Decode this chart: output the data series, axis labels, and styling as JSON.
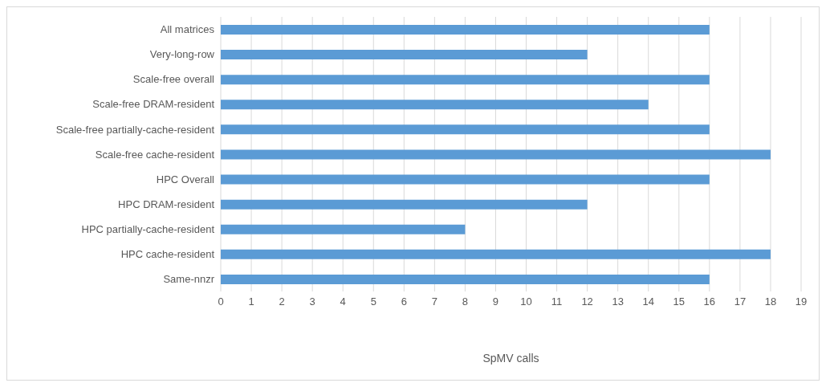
{
  "chart_data": {
    "type": "bar",
    "orientation": "horizontal",
    "xlabel": "SpMV calls",
    "categories": [
      "All matrices",
      "Very-long-row",
      "Scale-free  overall",
      "Scale-free DRAM-resident",
      "Scale-free partially-cache-resident",
      "Scale-free cache-resident",
      "HPC Overall",
      "HPC DRAM-resident",
      "HPC partially-cache-resident",
      "HPC cache-resident",
      "Same-nnzr"
    ],
    "values": [
      16,
      12,
      16,
      14,
      16,
      18,
      16,
      12,
      8,
      18,
      16
    ],
    "color": "#5b9bd5",
    "xlim": [
      0,
      19
    ],
    "xticks": [
      0,
      1,
      2,
      3,
      4,
      5,
      6,
      7,
      8,
      9,
      10,
      11,
      12,
      13,
      14,
      15,
      16,
      17,
      18,
      19
    ],
    "grid": "x",
    "legend": false
  }
}
